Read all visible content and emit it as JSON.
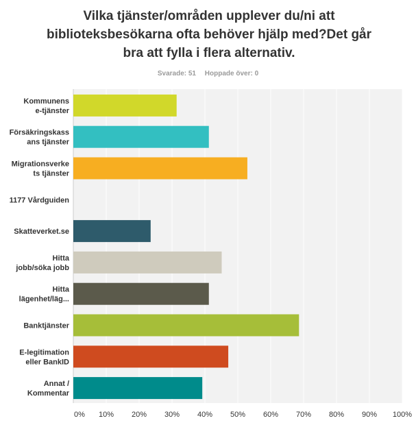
{
  "title": "Vilka tjänster/områden upplever du/ni att biblioteksbesökarna ofta behöver hjälp med?Det går bra att fylla i flera alternativ.",
  "stats": {
    "answered": "Svarade: 51",
    "skipped": "Hoppade över: 0"
  },
  "chart_data": {
    "type": "bar",
    "orientation": "horizontal",
    "title": "Vilka tjänster/områden upplever du/ni att biblioteksbesökarna ofta behöver hjälp med?Det går bra att fylla i flera alternativ.",
    "categories": [
      [
        "Kommunens",
        "e-tjänster"
      ],
      [
        "Försäkringskass",
        "ans tjänster"
      ],
      [
        "Migrationsverke",
        "ts tjänster"
      ],
      [
        "1177 Vårdguiden"
      ],
      [
        "Skatteverket.se"
      ],
      [
        "Hitta",
        "jobb/söka jobb"
      ],
      [
        "Hitta",
        "lägenhet/läg..."
      ],
      [
        "Banktjänster"
      ],
      [
        "E-legitimation",
        "eller BankID"
      ],
      [
        "Annat /",
        "Kommentar"
      ]
    ],
    "values": [
      31.4,
      41.2,
      52.9,
      0,
      23.5,
      45.1,
      41.2,
      68.6,
      47.1,
      39.2
    ],
    "colors": [
      "#d1d82a",
      "#33bfc1",
      "#f7ae21",
      "#d9d9d9",
      "#2e5b6b",
      "#cfcbbd",
      "#5b5a4b",
      "#a6be39",
      "#cf4b1f",
      "#008b8b"
    ],
    "xlim": [
      0,
      100
    ],
    "xticks": [
      "0%",
      "10%",
      "20%",
      "30%",
      "40%",
      "50%",
      "60%",
      "70%",
      "80%",
      "90%",
      "100%"
    ],
    "grid": true,
    "xlabel": "",
    "ylabel": ""
  }
}
